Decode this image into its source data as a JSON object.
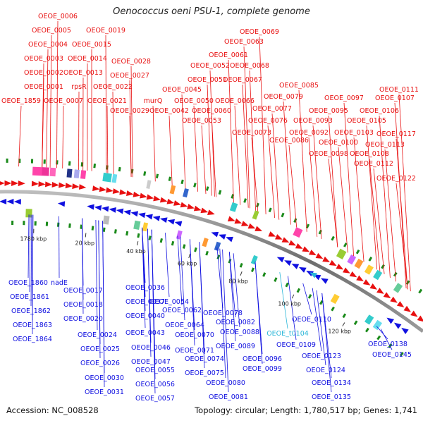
{
  "title": "Oenococcus oeni PSU-1, complete genome",
  "footer": {
    "accession": "Accession: NC_008528",
    "topology": "Topology: circular; Length: 1,780,517 bp; Genes: 1,741"
  },
  "colors": {
    "forward": "#e81010",
    "reverse": "#1010e0",
    "trna": "#2ab6d8",
    "backbone": "#7a7a7a",
    "tick_mark": "#1a8a1a"
  },
  "scale_labels": [
    "1780 kbp",
    "20 kbp",
    "40 kbp",
    "60 kbp",
    "80 kbp",
    "100 kbp",
    "120 kbp"
  ],
  "forward_genes": [
    "OEOE_1859",
    "OEOE_0001",
    "OEOE_0002",
    "OEOE_0003",
    "OEOE_0004",
    "OEOE_0005",
    "OEOE_0006",
    "OEOE_0007",
    "rpsR",
    "OEOE_0013",
    "OEOE_0014",
    "OEOE_0015",
    "OEOE_0019",
    "OEOE_0021",
    "OEOE_0022",
    "OEOE_0027",
    "OEOE_0028",
    "OEOE_0029",
    "murQ",
    "OEOE_0042",
    "OEOE_0045",
    "OEOE_0050",
    "OEOE_0051",
    "OEOE_0052",
    "OEOE_0053",
    "OEOE_0060",
    "OEOE_0061",
    "OEOE_0063",
    "OEOE_0066",
    "OEOE_0067",
    "OEOE_0068",
    "OEOE_0069",
    "OEOE_0073",
    "OEOE_0076",
    "OEOE_0077",
    "OEOE_0079",
    "OEOE_0085",
    "OEOE_0086",
    "OEOE_0092",
    "OEOE_0093",
    "OEOE_0095",
    "OEOE_0097",
    "OEOE_0098",
    "OEOE_0100",
    "OEOE_0103",
    "OEOE_0105",
    "OEOE_0106",
    "OEOE_0107",
    "OEOE_0108",
    "OEOE_0111",
    "OEOE_0112",
    "OEOE_0113",
    "OEOE_0117",
    "OEOE_0122"
  ],
  "reverse_genes": [
    "OEOE_1860",
    "OEOE_1861",
    "OEOE_1862",
    "OEOE_1863",
    "OEOE_1864",
    "nadE",
    "OEOE_0017",
    "OEOE_0018",
    "OEOE_0020",
    "OEOE_0024",
    "OEOE_0025",
    "OEOE_0026",
    "OEOE_0030",
    "OEOE_0031",
    "OEOE_0036",
    "OEOE_0037",
    "OEOE_0040",
    "OEOE_0043",
    "OEOE_0046",
    "OEOE_0047",
    "OEOE_0054",
    "OEOE_0055",
    "OEOE_0056",
    "OEOE_0057",
    "OEOE_0062",
    "OEOE_0064",
    "OEOE_0070",
    "OEOE_0071",
    "OEOE_0074",
    "OEOE_0075",
    "OEOE_0078",
    "OEOE_0080",
    "OEOE_0081",
    "OEOE_0082",
    "OEOE_0088",
    "OEOE_0089",
    "OEOE_0096",
    "OEOE_0099",
    "OEOE_t0104",
    "OEOE_0109",
    "OEOE_0110",
    "OEOE_0123",
    "OEOE_0124",
    "OEOE_0134",
    "OEOE_0135",
    "OEOE_0138",
    "OEOE_0145"
  ]
}
